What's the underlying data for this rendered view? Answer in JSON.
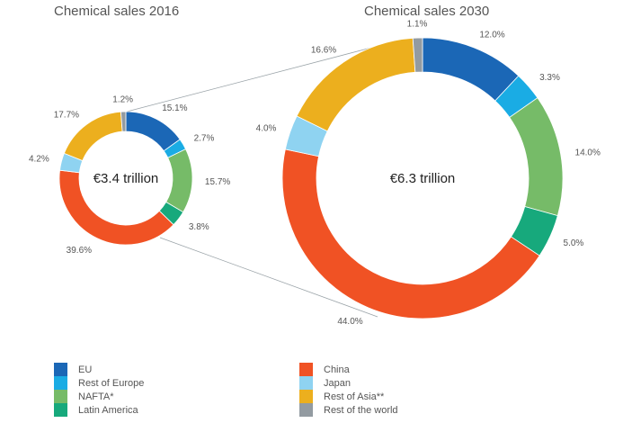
{
  "chart_data": [
    {
      "type": "pie",
      "variant": "donut",
      "title": "Chemical sales 2016",
      "center_label": "€3.4 trillion",
      "categories": [
        "EU",
        "Rest of Europe",
        "NAFTA*",
        "Latin America",
        "China",
        "Japan",
        "Rest of Asia**",
        "Rest of the world"
      ],
      "values": [
        15.1,
        2.7,
        15.7,
        3.8,
        39.6,
        4.2,
        17.7,
        1.2
      ],
      "labels": [
        "15.1%",
        "2.7%",
        "15.7%",
        "3.8%",
        "39.6%",
        "4.2%",
        "17.7%",
        "1.2%"
      ]
    },
    {
      "type": "pie",
      "variant": "donut",
      "title": "Chemical sales 2030",
      "center_label": "€6.3 trillion",
      "categories": [
        "EU",
        "Rest of Europe",
        "NAFTA*",
        "Latin America",
        "China",
        "Japan",
        "Rest of Asia**",
        "Rest of the world"
      ],
      "values": [
        12.0,
        3.3,
        14.0,
        5.0,
        44.0,
        4.0,
        16.6,
        1.1
      ],
      "labels": [
        "12.0%",
        "3.3%",
        "14.0%",
        "5.0%",
        "44.0%",
        "4.0%",
        "16.6%",
        "1.1%"
      ]
    }
  ],
  "colors": [
    "#1b67b6",
    "#1aace4",
    "#76bb68",
    "#17a97c",
    "#f05224",
    "#8fd3f1",
    "#ecaf1e",
    "#939ba1"
  ],
  "legend": {
    "position": "bottom",
    "items": [
      {
        "label": "EU",
        "color": "#1b67b6"
      },
      {
        "label": "Rest of Europe",
        "color": "#1aace4"
      },
      {
        "label": "NAFTA*",
        "color": "#76bb68"
      },
      {
        "label": "Latin America",
        "color": "#17a97c"
      },
      {
        "label": "China",
        "color": "#f05224"
      },
      {
        "label": "Japan",
        "color": "#8fd3f1"
      },
      {
        "label": "Rest of Asia**",
        "color": "#ecaf1e"
      },
      {
        "label": "Rest of the world",
        "color": "#939ba1"
      }
    ]
  }
}
